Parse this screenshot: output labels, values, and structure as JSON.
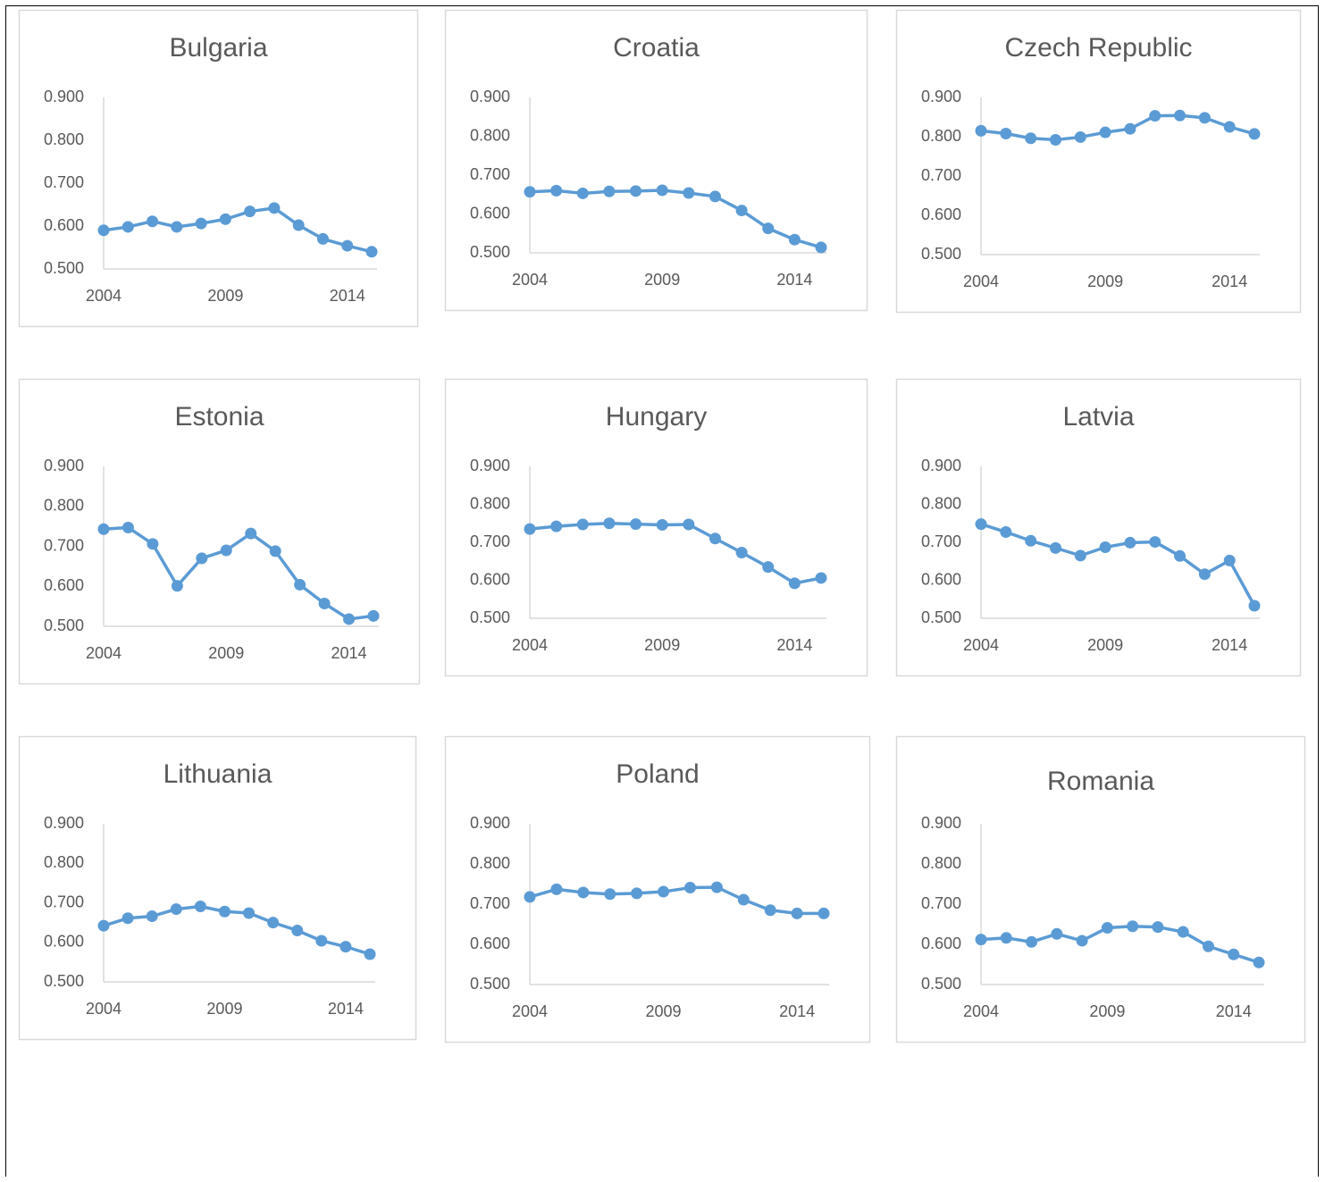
{
  "chart_data": [
    {
      "type": "line",
      "title": "Bulgaria",
      "x": [
        2004,
        2005,
        2006,
        2007,
        2008,
        2009,
        2010,
        2011,
        2012,
        2013,
        2014,
        2015
      ],
      "xlim": [
        2004,
        2015
      ],
      "xticks": [
        2004,
        2009,
        2014
      ],
      "ylim": [
        0.5,
        0.9
      ],
      "yticks": [
        {
          "value": 0.5,
          "label": "0.500"
        },
        {
          "value": 0.6,
          "label": "0.600"
        },
        {
          "value": 0.7,
          "label": "0.700"
        },
        {
          "value": 0.8,
          "label": "0.800"
        },
        {
          "value": 0.9,
          "label": "0.900"
        }
      ],
      "color": "#5b9bd5",
      "values": [
        0.59,
        0.598,
        0.611,
        0.598,
        0.606,
        0.616,
        0.634,
        0.642,
        0.602,
        0.57,
        0.554,
        0.54
      ]
    },
    {
      "type": "line",
      "title": "Croatia",
      "x": [
        2004,
        2005,
        2006,
        2007,
        2008,
        2009,
        2010,
        2011,
        2012,
        2013,
        2014,
        2015
      ],
      "xlim": [
        2004,
        2015
      ],
      "xticks": [
        2004,
        2009,
        2014
      ],
      "ylim": [
        0.5,
        0.9
      ],
      "yticks": [
        {
          "value": 0.5,
          "label": "0.500"
        },
        {
          "value": 0.6,
          "label": "0.600"
        },
        {
          "value": 0.7,
          "label": "0.700"
        },
        {
          "value": 0.8,
          "label": "0.800"
        },
        {
          "value": 0.9,
          "label": "0.900"
        }
      ],
      "color": "#5b9bd5",
      "values": [
        0.657,
        0.66,
        0.653,
        0.658,
        0.659,
        0.661,
        0.654,
        0.645,
        0.609,
        0.563,
        0.534,
        0.514
      ]
    },
    {
      "type": "line",
      "title": "Czech Republic",
      "x": [
        2004,
        2005,
        2006,
        2007,
        2008,
        2009,
        2010,
        2011,
        2012,
        2013,
        2014,
        2015
      ],
      "xlim": [
        2004,
        2015
      ],
      "xticks": [
        2004,
        2009,
        2014
      ],
      "ylim": [
        0.5,
        0.9
      ],
      "yticks": [
        {
          "value": 0.5,
          "label": "0.500"
        },
        {
          "value": 0.6,
          "label": "0.600"
        },
        {
          "value": 0.7,
          "label": "0.700"
        },
        {
          "value": 0.8,
          "label": "0.800"
        },
        {
          "value": 0.9,
          "label": "0.900"
        }
      ],
      "color": "#5b9bd5",
      "values": [
        0.815,
        0.808,
        0.796,
        0.792,
        0.799,
        0.811,
        0.82,
        0.853,
        0.854,
        0.848,
        0.825,
        0.807
      ]
    },
    {
      "type": "line",
      "title": "Estonia",
      "x": [
        2004,
        2005,
        2006,
        2007,
        2008,
        2009,
        2010,
        2011,
        2012,
        2013,
        2014,
        2015
      ],
      "xlim": [
        2004,
        2015
      ],
      "xticks": [
        2004,
        2009,
        2014
      ],
      "ylim": [
        0.5,
        0.9
      ],
      "yticks": [
        {
          "value": 0.5,
          "label": "0.500"
        },
        {
          "value": 0.6,
          "label": "0.600"
        },
        {
          "value": 0.7,
          "label": "0.700"
        },
        {
          "value": 0.8,
          "label": "0.800"
        },
        {
          "value": 0.9,
          "label": "0.900"
        }
      ],
      "color": "#5b9bd5",
      "values": [
        0.743,
        0.747,
        0.706,
        0.601,
        0.67,
        0.69,
        0.732,
        0.688,
        0.604,
        0.557,
        0.518,
        0.526
      ]
    },
    {
      "type": "line",
      "title": "Hungary",
      "x": [
        2004,
        2005,
        2006,
        2007,
        2008,
        2009,
        2010,
        2011,
        2012,
        2013,
        2014,
        2015
      ],
      "xlim": [
        2004,
        2015
      ],
      "xticks": [
        2004,
        2009,
        2014
      ],
      "ylim": [
        0.5,
        0.9
      ],
      "yticks": [
        {
          "value": 0.5,
          "label": "0.500"
        },
        {
          "value": 0.6,
          "label": "0.600"
        },
        {
          "value": 0.7,
          "label": "0.700"
        },
        {
          "value": 0.8,
          "label": "0.800"
        },
        {
          "value": 0.9,
          "label": "0.900"
        }
      ],
      "color": "#5b9bd5",
      "values": [
        0.735,
        0.742,
        0.747,
        0.75,
        0.748,
        0.746,
        0.747,
        0.71,
        0.673,
        0.635,
        0.592,
        0.606
      ]
    },
    {
      "type": "line",
      "title": "Latvia",
      "x": [
        2004,
        2005,
        2006,
        2007,
        2008,
        2009,
        2010,
        2011,
        2012,
        2013,
        2014,
        2015
      ],
      "xlim": [
        2004,
        2015
      ],
      "xticks": [
        2004,
        2009,
        2014
      ],
      "ylim": [
        0.5,
        0.9
      ],
      "yticks": [
        {
          "value": 0.5,
          "label": "0.500"
        },
        {
          "value": 0.6,
          "label": "0.600"
        },
        {
          "value": 0.7,
          "label": "0.700"
        },
        {
          "value": 0.8,
          "label": "0.800"
        },
        {
          "value": 0.9,
          "label": "0.900"
        }
      ],
      "color": "#5b9bd5",
      "values": [
        0.748,
        0.727,
        0.704,
        0.685,
        0.665,
        0.687,
        0.699,
        0.701,
        0.664,
        0.616,
        0.652,
        0.533
      ]
    },
    {
      "type": "line",
      "title": "Lithuania",
      "x": [
        2004,
        2005,
        2006,
        2007,
        2008,
        2009,
        2010,
        2011,
        2012,
        2013,
        2014,
        2015
      ],
      "xlim": [
        2004,
        2015
      ],
      "xticks": [
        2004,
        2009,
        2014
      ],
      "ylim": [
        0.5,
        0.9
      ],
      "yticks": [
        {
          "value": 0.5,
          "label": "0.500"
        },
        {
          "value": 0.6,
          "label": "0.600"
        },
        {
          "value": 0.7,
          "label": "0.700"
        },
        {
          "value": 0.8,
          "label": "0.800"
        },
        {
          "value": 0.9,
          "label": "0.900"
        }
      ],
      "color": "#5b9bd5",
      "values": [
        0.642,
        0.661,
        0.666,
        0.684,
        0.691,
        0.678,
        0.674,
        0.65,
        0.63,
        0.604,
        0.589,
        0.57
      ]
    },
    {
      "type": "line",
      "title": "Poland",
      "x": [
        2004,
        2005,
        2006,
        2007,
        2008,
        2009,
        2010,
        2011,
        2012,
        2013,
        2014,
        2015
      ],
      "xlim": [
        2004,
        2015
      ],
      "xticks": [
        2004,
        2009,
        2014
      ],
      "ylim": [
        0.5,
        0.9
      ],
      "yticks": [
        {
          "value": 0.5,
          "label": "0.500"
        },
        {
          "value": 0.6,
          "label": "0.600"
        },
        {
          "value": 0.7,
          "label": "0.700"
        },
        {
          "value": 0.8,
          "label": "0.800"
        },
        {
          "value": 0.9,
          "label": "0.900"
        }
      ],
      "color": "#5b9bd5",
      "values": [
        0.718,
        0.737,
        0.729,
        0.725,
        0.727,
        0.731,
        0.741,
        0.742,
        0.711,
        0.685,
        0.677,
        0.677
      ]
    },
    {
      "type": "line",
      "title": "Romania",
      "x": [
        2004,
        2005,
        2006,
        2007,
        2008,
        2009,
        2010,
        2011,
        2012,
        2013,
        2014,
        2015
      ],
      "xlim": [
        2004,
        2015
      ],
      "xticks": [
        2004,
        2009,
        2014
      ],
      "ylim": [
        0.5,
        0.9
      ],
      "yticks": [
        {
          "value": 0.5,
          "label": "0.500"
        },
        {
          "value": 0.6,
          "label": "0.600"
        },
        {
          "value": 0.7,
          "label": "0.700"
        },
        {
          "value": 0.8,
          "label": "0.800"
        },
        {
          "value": 0.9,
          "label": "0.900"
        }
      ],
      "color": "#5b9bd5",
      "values": [
        0.612,
        0.616,
        0.606,
        0.626,
        0.609,
        0.641,
        0.645,
        0.643,
        0.631,
        0.595,
        0.575,
        0.555
      ]
    }
  ]
}
